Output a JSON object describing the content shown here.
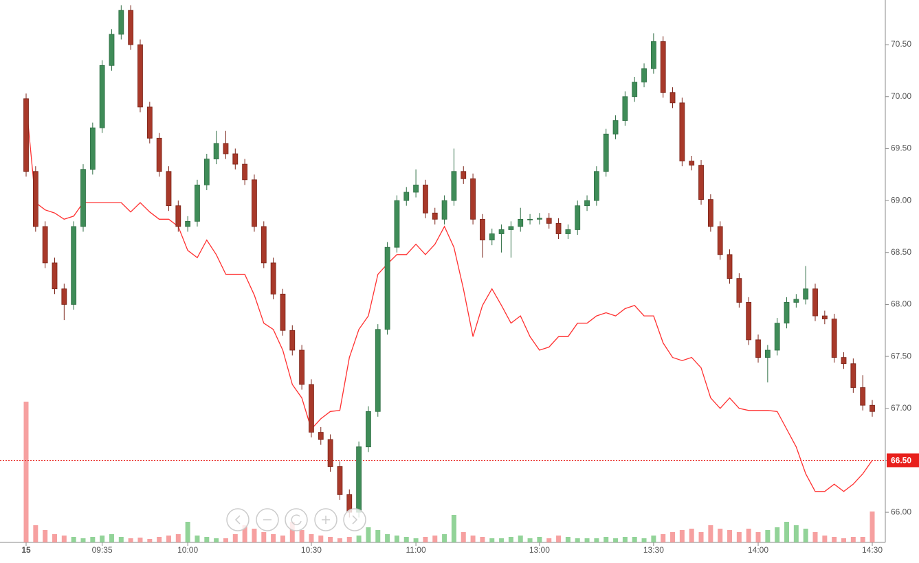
{
  "chart_data": {
    "type": "candlestick",
    "categories": [
      "15",
      null,
      null,
      null,
      null,
      null,
      null,
      null,
      "09:35",
      null,
      null,
      null,
      null,
      null,
      null,
      null,
      null,
      "10:00",
      null,
      null,
      null,
      null,
      null,
      null,
      null,
      null,
      null,
      null,
      null,
      null,
      "10:30",
      null,
      null,
      null,
      null,
      null,
      null,
      null,
      null,
      null,
      null,
      "11:00",
      null,
      null,
      null,
      null,
      null,
      null,
      null,
      null,
      null,
      null,
      null,
      null,
      "13:00",
      null,
      null,
      null,
      null,
      null,
      null,
      null,
      null,
      null,
      null,
      null,
      "13:30",
      null,
      null,
      null,
      null,
      null,
      null,
      null,
      null,
      null,
      null,
      "14:00",
      null,
      null,
      null,
      null,
      null,
      null,
      null,
      null,
      null,
      null,
      null,
      "14:30"
    ],
    "open": [
      69.98,
      69.28,
      68.75,
      68.4,
      68.15,
      68.0,
      68.75,
      69.3,
      69.7,
      70.3,
      70.6,
      70.83,
      70.5,
      69.9,
      69.6,
      69.28,
      68.95,
      68.75,
      68.8,
      69.15,
      69.4,
      69.55,
      69.45,
      69.35,
      69.2,
      68.75,
      68.4,
      68.1,
      67.75,
      67.56,
      67.23,
      66.77,
      66.7,
      66.44,
      66.17,
      66.0,
      66.63,
      66.97,
      67.76,
      68.55,
      69.0,
      69.08,
      69.15,
      68.88,
      68.82,
      69.0,
      69.28,
      69.21,
      68.82,
      68.62,
      68.68,
      68.72,
      68.75,
      68.82,
      68.82,
      68.83,
      68.78,
      68.68,
      68.72,
      68.95,
      69.0,
      69.28,
      69.64,
      69.77,
      70.0,
      70.14,
      70.27,
      70.53,
      70.04,
      69.94,
      69.38,
      69.34,
      69.01,
      68.75,
      68.48,
      68.25,
      68.02,
      67.66,
      67.49,
      67.56,
      67.82,
      68.02,
      68.05,
      68.15,
      67.89,
      67.86,
      67.49,
      67.43,
      67.2,
      67.03
    ],
    "high": [
      70.03,
      69.33,
      68.8,
      68.45,
      68.2,
      68.8,
      69.35,
      69.75,
      70.35,
      70.65,
      70.88,
      70.88,
      70.55,
      69.95,
      69.65,
      69.33,
      69.0,
      68.85,
      69.2,
      69.45,
      69.67,
      69.67,
      69.5,
      69.4,
      69.25,
      68.8,
      68.45,
      68.15,
      67.8,
      67.61,
      67.28,
      66.82,
      66.75,
      66.49,
      66.22,
      66.68,
      67.02,
      67.81,
      68.6,
      69.05,
      69.13,
      69.3,
      69.2,
      68.93,
      69.05,
      69.5,
      69.33,
      69.26,
      68.87,
      68.73,
      68.77,
      68.8,
      68.93,
      68.87,
      68.88,
      68.88,
      68.83,
      68.77,
      69.0,
      69.05,
      69.33,
      69.69,
      69.82,
      70.05,
      70.19,
      70.32,
      70.61,
      70.58,
      70.09,
      69.99,
      69.43,
      69.39,
      69.06,
      68.8,
      68.53,
      68.3,
      68.07,
      67.71,
      67.61,
      67.87,
      68.07,
      68.1,
      68.37,
      68.2,
      67.94,
      67.91,
      67.54,
      67.48,
      67.32,
      67.08
    ],
    "low": [
      69.23,
      68.7,
      68.35,
      68.1,
      67.85,
      67.95,
      68.7,
      69.25,
      69.65,
      70.25,
      70.55,
      70.45,
      69.85,
      69.55,
      69.23,
      68.9,
      68.7,
      68.7,
      68.75,
      69.1,
      69.35,
      69.4,
      69.3,
      69.15,
      68.7,
      68.35,
      68.05,
      67.7,
      67.51,
      67.18,
      66.72,
      66.65,
      66.39,
      66.12,
      65.95,
      65.95,
      66.58,
      66.92,
      67.71,
      68.5,
      68.95,
      69.03,
      68.83,
      68.77,
      68.77,
      68.95,
      69.16,
      68.77,
      68.45,
      68.57,
      68.5,
      68.45,
      68.7,
      68.77,
      68.77,
      68.73,
      68.63,
      68.63,
      68.67,
      68.9,
      68.95,
      69.23,
      69.59,
      69.72,
      69.95,
      70.09,
      70.22,
      69.99,
      69.89,
      69.33,
      69.29,
      68.96,
      68.7,
      68.43,
      68.2,
      67.97,
      67.61,
      67.44,
      67.25,
      67.51,
      67.77,
      67.97,
      68.0,
      67.84,
      67.81,
      67.44,
      67.38,
      67.15,
      66.98,
      66.92
    ],
    "close": [
      69.28,
      68.75,
      68.4,
      68.15,
      68.0,
      68.75,
      69.3,
      69.7,
      70.3,
      70.6,
      70.83,
      70.5,
      69.9,
      69.6,
      69.28,
      68.95,
      68.75,
      68.8,
      69.15,
      69.4,
      69.55,
      69.45,
      69.35,
      69.2,
      68.75,
      68.4,
      68.1,
      67.75,
      67.56,
      67.23,
      66.77,
      66.7,
      66.44,
      66.17,
      66.0,
      66.63,
      66.97,
      67.76,
      68.55,
      69.0,
      69.08,
      69.15,
      68.88,
      68.82,
      69.0,
      69.28,
      69.21,
      68.82,
      68.62,
      68.68,
      68.72,
      68.75,
      68.82,
      68.82,
      68.83,
      68.78,
      68.68,
      68.72,
      68.95,
      69.0,
      69.28,
      69.64,
      69.77,
      70.0,
      70.14,
      70.27,
      70.53,
      70.04,
      69.94,
      69.38,
      69.34,
      69.01,
      68.75,
      68.48,
      68.25,
      68.02,
      67.66,
      67.49,
      67.56,
      67.82,
      68.02,
      68.05,
      68.15,
      67.89,
      67.86,
      67.49,
      67.43,
      67.2,
      67.03,
      66.97
    ],
    "volume": [
      205,
      25,
      18,
      12,
      10,
      8,
      6,
      8,
      10,
      12,
      8,
      6,
      7,
      5,
      8,
      10,
      12,
      30,
      10,
      8,
      6,
      6,
      12,
      25,
      20,
      15,
      12,
      10,
      30,
      18,
      12,
      10,
      8,
      6,
      8,
      10,
      22,
      18,
      12,
      10,
      8,
      6,
      8,
      10,
      12,
      40,
      15,
      10,
      8,
      6,
      6,
      8,
      10,
      6,
      8,
      6,
      10,
      8,
      6,
      6,
      6,
      8,
      6,
      8,
      8,
      6,
      10,
      12,
      15,
      18,
      20,
      15,
      25,
      20,
      18,
      15,
      20,
      15,
      18,
      22,
      30,
      25,
      20,
      15,
      10,
      8,
      6,
      8,
      8,
      45
    ],
    "line": {
      "color": "#ff3030",
      "values": [
        69.94,
        68.98,
        68.91,
        68.88,
        68.82,
        68.85,
        68.98,
        68.98,
        68.98,
        68.98,
        68.98,
        68.89,
        68.98,
        68.89,
        68.82,
        68.82,
        68.75,
        68.52,
        68.45,
        68.62,
        68.48,
        68.29,
        68.29,
        68.29,
        68.09,
        67.82,
        67.76,
        67.56,
        67.23,
        67.1,
        66.8,
        66.9,
        66.97,
        66.98,
        67.49,
        67.76,
        67.89,
        68.29,
        68.39,
        68.48,
        68.48,
        68.58,
        68.48,
        68.58,
        68.75,
        68.55,
        68.15,
        67.69,
        67.99,
        68.15,
        67.99,
        67.82,
        67.89,
        67.69,
        67.56,
        67.59,
        67.69,
        67.69,
        67.82,
        67.82,
        67.89,
        67.92,
        67.89,
        67.96,
        67.99,
        67.89,
        67.89,
        67.63,
        67.49,
        67.46,
        67.49,
        67.39,
        67.1,
        67.0,
        67.1,
        67.0,
        66.98,
        66.98,
        66.98,
        66.97,
        66.8,
        66.63,
        66.37,
        66.2,
        66.2,
        66.27,
        66.2,
        66.27,
        66.37,
        66.5
      ]
    },
    "up_color": "#2f6e44",
    "up_fill": "#3f8c58",
    "down_color": "#7a2318",
    "down_fill": "#a8392a",
    "volume_up_color": "#7fcb86",
    "volume_down_color": "#f58f8f",
    "last_price": {
      "value": 66.5,
      "label": "66.50",
      "color": "#e8201c"
    },
    "ylim": [
      65.71,
      70.93
    ],
    "yticks": [
      {
        "value": 66,
        "label": "66.00"
      },
      {
        "value": 66.5,
        "label": "66.50"
      },
      {
        "value": 67,
        "label": "67.00"
      },
      {
        "value": 67.5,
        "label": "67.50"
      },
      {
        "value": 68,
        "label": "68.00"
      },
      {
        "value": 68.5,
        "label": "68.50"
      },
      {
        "value": 69,
        "label": "69.00"
      },
      {
        "value": 69.5,
        "label": "69.50"
      },
      {
        "value": 70,
        "label": "70.00"
      },
      {
        "value": 70.5,
        "label": "70.50"
      }
    ]
  }
}
